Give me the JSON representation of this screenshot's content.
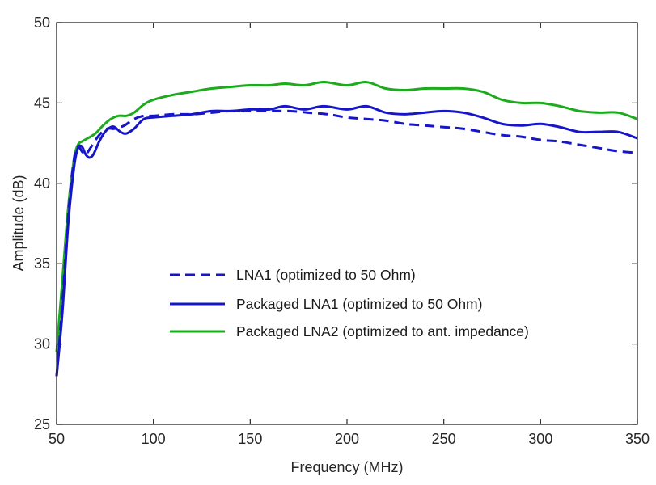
{
  "chart_data": {
    "type": "line",
    "title": "",
    "xlabel": "Frequency (MHz)",
    "ylabel": "Amplitude (dB)",
    "xlim": [
      50,
      350
    ],
    "ylim": [
      25,
      50
    ],
    "xticks": [
      "50",
      "100",
      "150",
      "200",
      "250",
      "300",
      "350"
    ],
    "yticks": [
      "25",
      "30",
      "35",
      "40",
      "45",
      "50"
    ],
    "grid": false,
    "legend_position": "center",
    "series": [
      {
        "name": "LNA1 (optimized to 50 Ohm)",
        "color": "#1616c8",
        "style": "dashed",
        "x": [
          50,
          53,
          56,
          59,
          61,
          63,
          65,
          68,
          72,
          76,
          80,
          85,
          90,
          95,
          100,
          110,
          120,
          130,
          140,
          150,
          160,
          170,
          180,
          190,
          200,
          210,
          220,
          230,
          240,
          250,
          260,
          270,
          280,
          290,
          300,
          310,
          320,
          330,
          340,
          350
        ],
        "y": [
          28.0,
          32.5,
          38.0,
          41.5,
          42.3,
          42.0,
          41.8,
          42.3,
          43.0,
          43.4,
          43.4,
          43.6,
          44.0,
          44.2,
          44.2,
          44.3,
          44.3,
          44.4,
          44.5,
          44.5,
          44.5,
          44.5,
          44.4,
          44.3,
          44.1,
          44.0,
          43.9,
          43.7,
          43.6,
          43.5,
          43.4,
          43.2,
          43.0,
          42.9,
          42.7,
          42.6,
          42.4,
          42.2,
          42.0,
          41.9
        ]
      },
      {
        "name": "Packaged LNA1 (optimized to 50 Ohm)",
        "color": "#1616c8",
        "style": "solid",
        "x": [
          50,
          53,
          56,
          59,
          61,
          63,
          65,
          67,
          69,
          72,
          75,
          78,
          80,
          83,
          86,
          90,
          95,
          100,
          110,
          120,
          130,
          140,
          150,
          160,
          168,
          178,
          188,
          200,
          210,
          220,
          230,
          240,
          250,
          260,
          270,
          280,
          290,
          300,
          310,
          320,
          330,
          340,
          350
        ],
        "y": [
          28.0,
          32.0,
          37.5,
          41.0,
          42.2,
          42.3,
          41.8,
          41.6,
          41.8,
          42.6,
          43.2,
          43.5,
          43.5,
          43.2,
          43.1,
          43.4,
          44.0,
          44.1,
          44.2,
          44.3,
          44.5,
          44.5,
          44.6,
          44.6,
          44.8,
          44.6,
          44.8,
          44.6,
          44.8,
          44.4,
          44.3,
          44.4,
          44.5,
          44.4,
          44.1,
          43.7,
          43.6,
          43.7,
          43.5,
          43.2,
          43.2,
          43.2,
          42.8
        ]
      },
      {
        "name": "Packaged LNA2 (optimized to ant. impedance)",
        "color": "#1cab1c",
        "style": "solid",
        "x": [
          50,
          53,
          56,
          59,
          61,
          63,
          66,
          70,
          74,
          78,
          82,
          86,
          90,
          95,
          100,
          110,
          120,
          130,
          140,
          150,
          160,
          168,
          178,
          188,
          200,
          210,
          220,
          230,
          240,
          250,
          260,
          270,
          280,
          290,
          300,
          310,
          320,
          330,
          340,
          350
        ],
        "y": [
          29.5,
          34.0,
          38.5,
          41.5,
          42.4,
          42.6,
          42.8,
          43.1,
          43.6,
          44.0,
          44.2,
          44.2,
          44.4,
          44.9,
          45.2,
          45.5,
          45.7,
          45.9,
          46.0,
          46.1,
          46.1,
          46.2,
          46.1,
          46.3,
          46.1,
          46.3,
          45.9,
          45.8,
          45.9,
          45.9,
          45.9,
          45.7,
          45.2,
          45.0,
          45.0,
          44.8,
          44.5,
          44.4,
          44.4,
          44.0
        ]
      }
    ]
  }
}
